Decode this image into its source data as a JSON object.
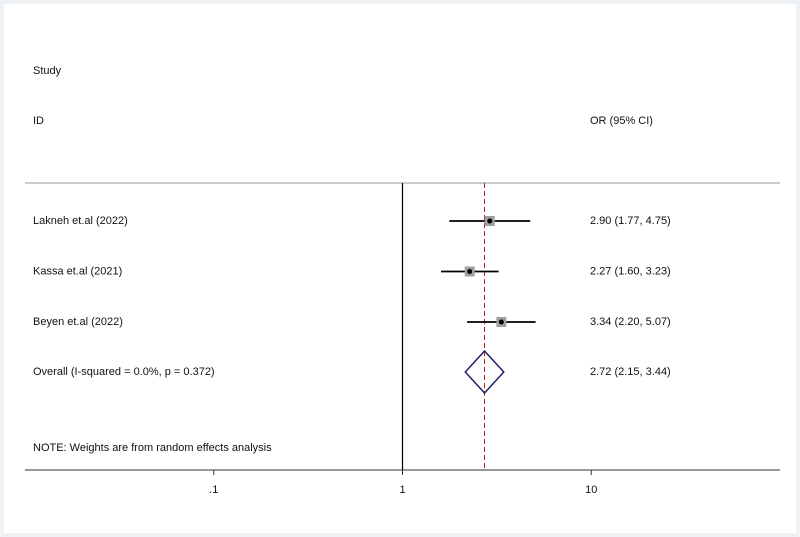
{
  "chart_data": {
    "type": "forest",
    "header": {
      "study": "Study",
      "id": "ID",
      "effect": "OR (95% CI)"
    },
    "studies": {
      "names": [
        "Lakneh et.al (2022)",
        "Kassa et.al (2021)",
        "Beyen et.al (2022)"
      ],
      "values": [
        2.9,
        2.27,
        3.34
      ],
      "lower": [
        1.77,
        1.6,
        2.2
      ],
      "upper": [
        4.75,
        3.23,
        5.07
      ],
      "value_labels": [
        "2.90 (1.77, 4.75)",
        "2.27 (1.60, 3.23)",
        "3.34 (2.20, 5.07)"
      ]
    },
    "overall": {
      "name": "Overall  (I-squared = 0.0%, p = 0.372)",
      "value": 2.72,
      "lower": 2.15,
      "upper": 3.44,
      "value_label": "2.72 (2.15, 3.44)"
    },
    "note": "NOTE: Weights are from random effects analysis",
    "xlim": [
      0.01,
      100
    ],
    "xscale": "log",
    "xticks": [
      {
        "value": 0.1,
        "label": ".1"
      },
      1,
      10
    ],
    "null_line": 1,
    "colors": {
      "study": "#000000",
      "box": "#a0a0a0",
      "overall": "#1f1f6b",
      "overall_line": "#b22222"
    }
  }
}
